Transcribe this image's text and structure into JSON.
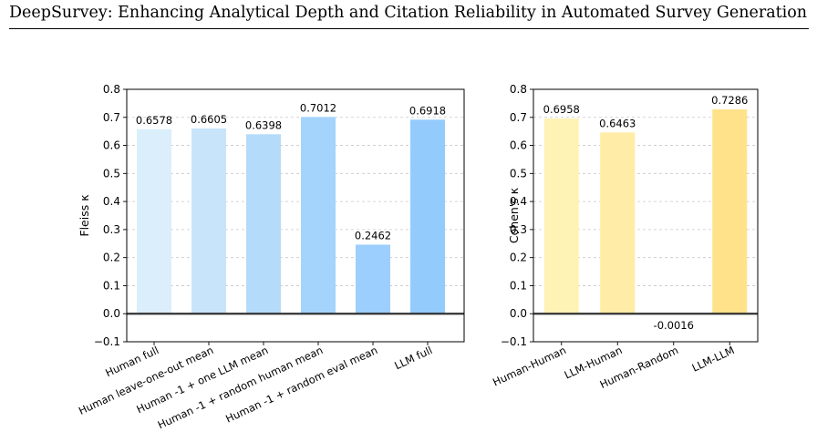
{
  "header": {
    "title": "DeepSurvey: Enhancing Analytical Depth and Citation Reliability in Automated Survey Generation"
  },
  "chart_data": [
    {
      "type": "bar",
      "ylabel": "Fleiss κ",
      "xlabel": "",
      "ylim": [
        -0.1,
        0.8
      ],
      "yticks": [
        -0.1,
        0.0,
        0.1,
        0.2,
        0.3,
        0.4,
        0.5,
        0.6,
        0.7,
        0.8
      ],
      "yticklabels": [
        "−0.1",
        "0.0",
        "0.1",
        "0.2",
        "0.3",
        "0.4",
        "0.5",
        "0.6",
        "0.7",
        "0.8"
      ],
      "grid": "horizontal dashed",
      "categories": [
        "Human full",
        "Human leave-one-out mean",
        "Human -1 + one LLM mean",
        "Human -1 + random human mean",
        "Human -1 + random eval mean",
        "LLM full"
      ],
      "values": [
        0.6578,
        0.6605,
        0.6398,
        0.7012,
        0.2462,
        0.6918
      ],
      "value_labels": [
        "0.6578",
        "0.6605",
        "0.6398",
        "0.7012",
        "0.2462",
        "0.6918"
      ],
      "colors": [
        "#dbeefc",
        "#c8e4fa",
        "#b5dbfb",
        "#a4d3fc",
        "#9ccffd",
        "#93cbfc"
      ]
    },
    {
      "type": "bar",
      "ylabel": "Cohen's κ",
      "xlabel": "",
      "ylim": [
        -0.1,
        0.8
      ],
      "yticks": [
        -0.1,
        0.0,
        0.1,
        0.2,
        0.3,
        0.4,
        0.5,
        0.6,
        0.7,
        0.8
      ],
      "yticklabels": [
        "−0.1",
        "0.0",
        "0.1",
        "0.2",
        "0.3",
        "0.4",
        "0.5",
        "0.6",
        "0.7",
        "0.8"
      ],
      "grid": "horizontal dashed",
      "categories": [
        "Human-Human",
        "LLM-Human",
        "Human-Random",
        "LLM-LLM"
      ],
      "values": [
        0.6958,
        0.6463,
        -0.0016,
        0.7286
      ],
      "value_labels": [
        "0.6958",
        "0.6463",
        "-0.0016",
        "0.7286"
      ],
      "colors": [
        "#fff2b5",
        "#ffeca6",
        "#ffe699",
        "#ffe28a"
      ]
    }
  ]
}
